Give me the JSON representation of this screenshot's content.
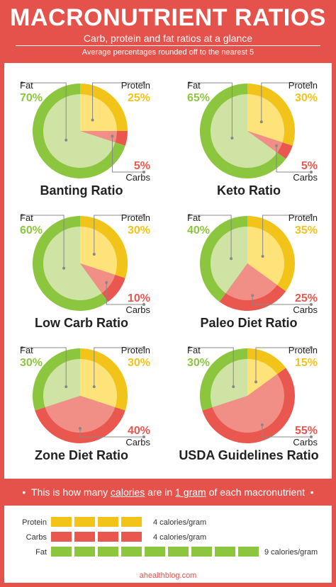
{
  "header": {
    "title": "MACRONUTRIENT RATIOS",
    "subtitle": "Carb, protein and fat ratios at a glance",
    "note": "Average percentages rounded off to the nearest 5"
  },
  "colors": {
    "fat": "#8cc63f",
    "fat_light": "#cfe4a4",
    "protein": "#f2c318",
    "protein_light": "#fde37a",
    "carbs": "#e9574f",
    "carbs_light": "#f18f86",
    "background": "#e4524b",
    "text": "#222222"
  },
  "labels": {
    "fat": "Fat",
    "protein": "Protein",
    "carbs": "Carbs"
  },
  "chart_data": [
    {
      "type": "pie",
      "title": "Banting Ratio",
      "categories": [
        "Fat",
        "Protein",
        "Carbs"
      ],
      "values": [
        70,
        25,
        5
      ],
      "value_labels": [
        "70%",
        "25%",
        "5%"
      ]
    },
    {
      "type": "pie",
      "title": "Keto Ratio",
      "categories": [
        "Fat",
        "Protein",
        "Carbs"
      ],
      "values": [
        65,
        30,
        5
      ],
      "value_labels": [
        "65%",
        "30%",
        "5%"
      ]
    },
    {
      "type": "pie",
      "title": "Low Carb Ratio",
      "categories": [
        "Fat",
        "Protein",
        "Carbs"
      ],
      "values": [
        60,
        30,
        10
      ],
      "value_labels": [
        "60%",
        "30%",
        "10%"
      ]
    },
    {
      "type": "pie",
      "title": "Paleo Diet Ratio",
      "categories": [
        "Fat",
        "Protein",
        "Carbs"
      ],
      "values": [
        40,
        35,
        25
      ],
      "value_labels": [
        "40%",
        "35%",
        "25%"
      ]
    },
    {
      "type": "pie",
      "title": "Zone Diet Ratio",
      "categories": [
        "Fat",
        "Protein",
        "Carbs"
      ],
      "values": [
        30,
        30,
        40
      ],
      "value_labels": [
        "30%",
        "30%",
        "40%"
      ]
    },
    {
      "type": "pie",
      "title": "USDA Guidelines Ratio",
      "categories": [
        "Fat",
        "Protein",
        "Carbs"
      ],
      "values": [
        30,
        15,
        55
      ],
      "value_labels": [
        "30%",
        "15%",
        "55%"
      ]
    },
    {
      "type": "bar",
      "categories": [
        "Protein",
        "Carbs",
        "Fat"
      ],
      "values": [
        4,
        4,
        9
      ],
      "value_labels": [
        "4 calories/gram",
        "4 calories/gram",
        "9 calories/gram"
      ]
    }
  ],
  "banner": {
    "pre": "This is how many ",
    "calories": "calories",
    "mid": " are in ",
    "gram": "1 gram",
    "post": " of each macronutrient",
    "bullet": "•"
  },
  "footer": {
    "site": "ahealthblog.com"
  }
}
